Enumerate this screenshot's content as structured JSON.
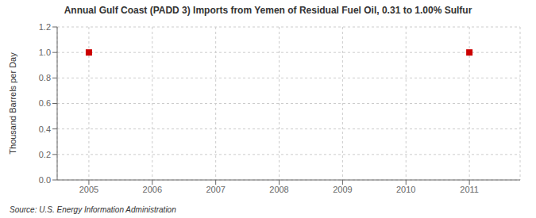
{
  "chart_data": {
    "type": "scatter",
    "title": "Annual Gulf Coast (PADD 3) Imports from Yemen of Residual Fuel Oil, 0.31 to 1.00% Sulfur",
    "ylabel": "Thousand Barrels per Day",
    "source": "Source: U.S. Energy Information Administration",
    "x": [
      2005,
      2011
    ],
    "values": [
      1.0,
      1.0
    ],
    "color": "#cc0000",
    "marker": "square",
    "xlim": [
      2004.5,
      2011.8
    ],
    "ylim": [
      0.0,
      1.2
    ],
    "xticks": [
      2005,
      2006,
      2007,
      2008,
      2009,
      2010,
      2011
    ],
    "yticks": [
      {
        "value": 0.0,
        "label": "0.0"
      },
      {
        "value": 0.2,
        "label": "0.2"
      },
      {
        "value": 0.4,
        "label": "0.4"
      },
      {
        "value": 0.6,
        "label": "0.6"
      },
      {
        "value": 0.8,
        "label": "0.8"
      },
      {
        "value": 1.0,
        "label": "1.0"
      },
      {
        "value": 1.2,
        "label": "1.2"
      }
    ],
    "grid": true
  }
}
